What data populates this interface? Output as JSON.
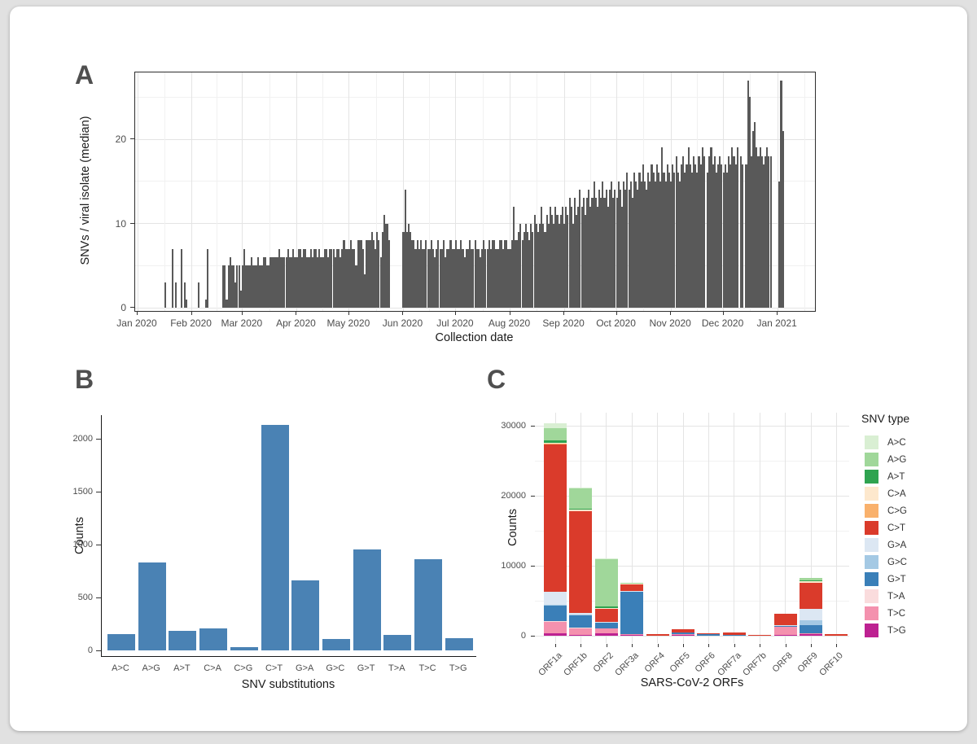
{
  "page": {
    "background": "#e1e1e1",
    "card_background": "#ffffff"
  },
  "chart_data": [
    {
      "id": "A",
      "type": "bar",
      "panel_label": "A",
      "xlabel": "Collection date",
      "ylabel": "SNVs / viral isolate (median)",
      "bar_color": "#595959",
      "ylim": [
        0,
        28
      ],
      "yticks": [
        0,
        10,
        20
      ],
      "yticks_minor": [
        5,
        15,
        25
      ],
      "grid": "major and minor, light gray, bordered panel",
      "month_ticks": [
        {
          "label": "Jan 2020",
          "day": 0
        },
        {
          "label": "Feb 2020",
          "day": 31
        },
        {
          "label": "Mar 2020",
          "day": 60
        },
        {
          "label": "Apr 2020",
          "day": 91
        },
        {
          "label": "May 2020",
          "day": 121
        },
        {
          "label": "Jun 2020",
          "day": 152
        },
        {
          "label": "Jul 2020",
          "day": 182
        },
        {
          "label": "Aug 2020",
          "day": 213
        },
        {
          "label": "Sep 2020",
          "day": 244
        },
        {
          "label": "Oct 2020",
          "day": 274
        },
        {
          "label": "Nov 2020",
          "day": 305
        },
        {
          "label": "Dec 2020",
          "day": 335
        },
        {
          "label": "Jan 2021",
          "day": 366
        }
      ],
      "x_domain_days": [
        0,
        387
      ],
      "bars_start_day": 16,
      "daily_values": [
        3,
        0,
        0,
        0,
        7,
        0,
        3,
        0,
        0,
        7,
        0,
        3,
        1,
        0,
        0,
        0,
        0,
        0,
        0,
        3,
        0,
        0,
        0,
        1,
        7,
        0,
        0,
        0,
        0,
        0,
        0,
        0,
        0,
        5,
        5,
        1,
        5,
        6,
        5,
        5,
        3,
        5,
        5,
        2,
        5,
        7,
        5,
        5,
        5,
        6,
        5,
        5,
        5,
        6,
        5,
        5,
        6,
        6,
        5,
        5,
        6,
        6,
        6,
        6,
        6,
        7,
        6,
        6,
        6,
        6,
        7,
        6,
        6,
        7,
        6,
        6,
        7,
        7,
        6,
        7,
        7,
        6,
        6,
        7,
        6,
        7,
        7,
        6,
        7,
        6,
        6,
        7,
        7,
        6,
        7,
        7,
        7,
        6,
        7,
        7,
        6,
        7,
        8,
        7,
        7,
        7,
        8,
        7,
        7,
        5,
        8,
        8,
        8,
        7,
        4,
        8,
        8,
        8,
        9,
        8,
        7,
        9,
        8,
        6,
        9,
        11,
        10,
        10,
        8,
        0,
        0,
        0,
        0,
        0,
        0,
        0,
        9,
        14,
        9,
        10,
        9,
        8,
        8,
        7,
        8,
        7,
        8,
        7,
        7,
        8,
        7,
        7,
        8,
        7,
        6,
        7,
        8,
        7,
        7,
        8,
        6,
        7,
        7,
        8,
        7,
        7,
        8,
        7,
        7,
        8,
        7,
        6,
        7,
        7,
        8,
        7,
        7,
        8,
        7,
        7,
        6,
        7,
        8,
        7,
        7,
        8,
        7,
        8,
        8,
        7,
        7,
        8,
        8,
        7,
        8,
        8,
        7,
        7,
        8,
        12,
        8,
        8,
        9,
        10,
        8,
        9,
        10,
        9,
        8,
        10,
        9,
        11,
        10,
        9,
        10,
        12,
        10,
        9,
        11,
        10,
        12,
        11,
        10,
        12,
        11,
        10,
        11,
        12,
        10,
        12,
        11,
        13,
        12,
        10,
        13,
        11,
        12,
        14,
        12,
        13,
        11,
        13,
        14,
        12,
        13,
        15,
        13,
        12,
        14,
        13,
        15,
        13,
        14,
        12,
        14,
        15,
        13,
        14,
        13,
        15,
        14,
        12,
        15,
        14,
        16,
        14,
        15,
        13,
        16,
        15,
        14,
        16,
        15,
        17,
        15,
        14,
        16,
        15,
        17,
        16,
        15,
        17,
        16,
        15,
        19,
        16,
        15,
        17,
        16,
        15,
        17,
        16,
        18,
        16,
        15,
        17,
        18,
        16,
        17,
        19,
        17,
        16,
        18,
        17,
        16,
        18,
        17,
        19,
        18,
        0,
        16,
        18,
        19,
        17,
        18,
        16,
        17,
        18,
        17,
        16,
        17,
        16,
        18,
        17,
        19,
        18,
        17,
        19,
        0,
        18,
        17,
        0,
        17,
        27,
        25,
        18,
        21,
        22,
        19,
        18,
        19,
        18,
        17,
        18,
        19,
        18,
        18,
        0,
        0,
        0,
        0,
        15,
        27,
        21
      ]
    },
    {
      "id": "B",
      "type": "bar",
      "panel_label": "B",
      "xlabel": "SNV substitutions",
      "ylabel": "Counts",
      "bar_color": "#4a82b4",
      "ylim": [
        0,
        2200
      ],
      "yticks": [
        0,
        500,
        1000,
        1500,
        2000
      ],
      "grid": "none, classic axes (left + bottom black lines)",
      "categories": [
        "A>C",
        "A>G",
        "A>T",
        "C>A",
        "C>G",
        "C>T",
        "G>A",
        "G>C",
        "G>T",
        "T>A",
        "T>C",
        "T>G"
      ],
      "values": [
        155,
        830,
        185,
        205,
        30,
        2130,
        665,
        105,
        955,
        150,
        860,
        115
      ]
    },
    {
      "id": "C",
      "type": "stacked-bar",
      "panel_label": "C",
      "xlabel": "SARS-CoV-2 ORFs",
      "ylabel": "Counts",
      "ylim": [
        0,
        32500
      ],
      "yticks": [
        0,
        10000,
        20000,
        30000
      ],
      "yticks_minor": [
        5000,
        15000,
        25000
      ],
      "grid": "major and minor horizontal + vertical per category, light gray, no border",
      "legend_title": "SNV type",
      "legend_position": "right",
      "stack_note": "segments stacked bottom-to-top in reverse legend order (T>G at bottom, A>C on top)",
      "categories": [
        "ORF1a",
        "ORF1b",
        "ORF2",
        "ORF3a",
        "ORF4",
        "ORF5",
        "ORF6",
        "ORF7a",
        "ORF7b",
        "ORF8",
        "ORF9",
        "ORF10"
      ],
      "series": [
        {
          "name": "A>C",
          "color": "#d9efd3",
          "values": [
            700,
            100,
            150,
            0,
            0,
            0,
            0,
            0,
            0,
            0,
            0,
            0
          ]
        },
        {
          "name": "A>G",
          "color": "#a0d79a",
          "values": [
            1800,
            3000,
            6800,
            100,
            0,
            0,
            0,
            0,
            0,
            0,
            300,
            0
          ]
        },
        {
          "name": "A>T",
          "color": "#2fa350",
          "values": [
            300,
            100,
            200,
            0,
            0,
            0,
            0,
            0,
            0,
            0,
            100,
            0
          ]
        },
        {
          "name": "C>A",
          "color": "#fde8cd",
          "values": [
            200,
            150,
            100,
            50,
            0,
            0,
            0,
            0,
            0,
            0,
            200,
            0
          ]
        },
        {
          "name": "C>G",
          "color": "#f9b16c",
          "values": [
            100,
            50,
            50,
            0,
            0,
            0,
            0,
            0,
            0,
            0,
            0,
            0
          ]
        },
        {
          "name": "C>T",
          "color": "#da3b2b",
          "values": [
            21000,
            14500,
            1800,
            1000,
            150,
            450,
            100,
            400,
            40,
            1700,
            3800,
            200
          ]
        },
        {
          "name": "G>A",
          "color": "#dce7f3",
          "values": [
            1900,
            300,
            100,
            50,
            0,
            0,
            0,
            0,
            0,
            50,
            1600,
            0
          ]
        },
        {
          "name": "G>C",
          "color": "#a4c9e4",
          "values": [
            100,
            50,
            50,
            0,
            0,
            0,
            0,
            0,
            0,
            0,
            700,
            0
          ]
        },
        {
          "name": "G>T",
          "color": "#3a7fb8",
          "values": [
            2200,
            1800,
            800,
            6100,
            0,
            250,
            200,
            50,
            0,
            150,
            1200,
            0
          ]
        },
        {
          "name": "T>A",
          "color": "#fadcdd",
          "values": [
            100,
            50,
            50,
            0,
            0,
            0,
            0,
            0,
            0,
            0,
            0,
            0
          ]
        },
        {
          "name": "T>C",
          "color": "#f491ae",
          "values": [
            1700,
            1000,
            600,
            100,
            0,
            100,
            0,
            0,
            0,
            1200,
            100,
            0
          ]
        },
        {
          "name": "T>G",
          "color": "#bd2191",
          "values": [
            300,
            100,
            400,
            100,
            30,
            100,
            50,
            50,
            30,
            100,
            200,
            30
          ]
        }
      ]
    }
  ]
}
